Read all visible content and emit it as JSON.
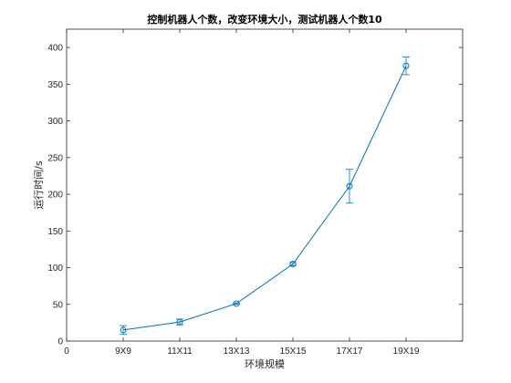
{
  "chart_data": {
    "type": "line",
    "title": "控制机器人个数，改变环境大小，测试机器人个数10",
    "xlabel": "环境规模",
    "ylabel": "运行时间/s",
    "x_ticks": [
      {
        "pos": 0,
        "label": "0"
      },
      {
        "pos": 1,
        "label": "9X9"
      },
      {
        "pos": 2,
        "label": "11X11"
      },
      {
        "pos": 3,
        "label": "13X13"
      },
      {
        "pos": 4,
        "label": "15X15"
      },
      {
        "pos": 5,
        "label": "17X17"
      },
      {
        "pos": 6,
        "label": "19X19"
      }
    ],
    "xlim": [
      0,
      7
    ],
    "ylim": [
      0,
      425
    ],
    "y_ticks": [
      0,
      50,
      100,
      150,
      200,
      250,
      300,
      350,
      400
    ],
    "grid": false,
    "series": [
      {
        "marker": "circle",
        "color": "#0072BD",
        "x": [
          1,
          2,
          3,
          4,
          5,
          6
        ],
        "y": [
          15,
          26,
          51,
          105,
          211,
          375
        ],
        "err": [
          6,
          4,
          1,
          2,
          23,
          12
        ]
      }
    ]
  }
}
